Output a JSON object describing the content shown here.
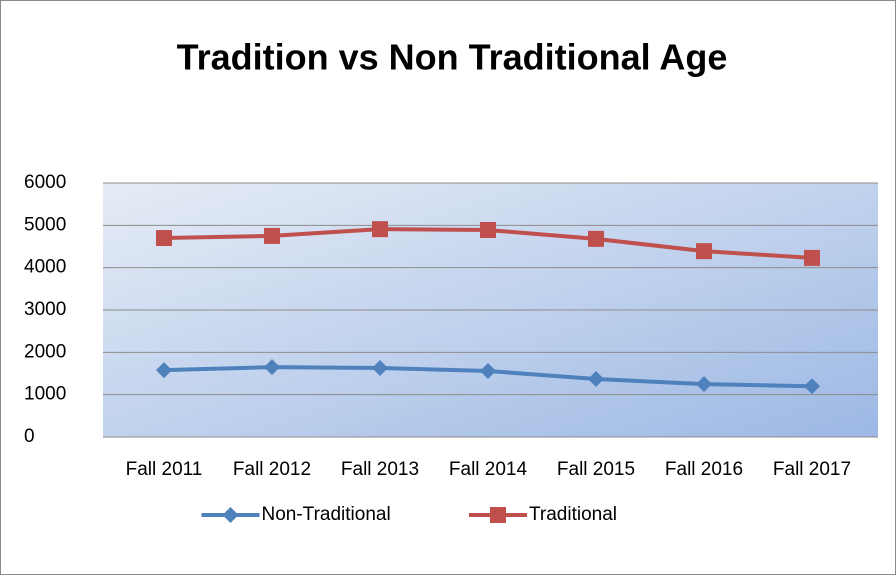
{
  "chart_data": {
    "type": "line",
    "title": "Tradition vs Non Traditional Age",
    "categories": [
      "Fall 2011",
      "Fall 2012",
      "Fall 2013",
      "Fall 2014",
      "Fall 2015",
      "Fall 2016",
      "Fall 2017"
    ],
    "series": [
      {
        "name": "Non-Traditional",
        "color": "#4f81bd",
        "marker": "diamond",
        "values": [
          1580,
          1650,
          1630,
          1560,
          1370,
          1250,
          1200
        ]
      },
      {
        "name": "Traditional",
        "color": "#c0504d",
        "marker": "square",
        "values": [
          4700,
          4750,
          4910,
          4890,
          4680,
          4390,
          4230
        ]
      }
    ],
    "ylim": [
      0,
      6000
    ],
    "yticks": [
      0,
      1000,
      2000,
      3000,
      4000,
      5000,
      6000
    ],
    "grid": true,
    "legend": "bottom"
  }
}
